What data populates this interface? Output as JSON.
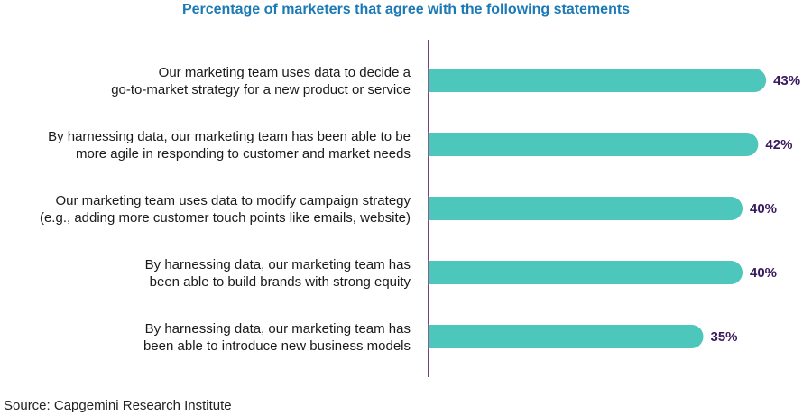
{
  "title": "Percentage of marketers that agree with the following statements",
  "source": "Source: Capgemini Research Institute",
  "colors": {
    "bar": "#4dc6bb",
    "axis": "#5b2a6e",
    "label": "#1a1a1a",
    "value": "#3a1a5e",
    "title": "#1b7ab5"
  },
  "chart_data": {
    "type": "bar",
    "orientation": "horizontal",
    "title": "Percentage of marketers that agree with the following statements",
    "categories": [
      [
        "Our marketing team uses data to decide a",
        "go-to-market strategy for a new product or service"
      ],
      [
        "By harnessing data, our marketing team has been able to be",
        "more agile in responding to customer and market needs"
      ],
      [
        "Our marketing team uses data to modify campaign strategy",
        "(e.g., adding more customer touch points like emails, website)"
      ],
      [
        "By harnessing data, our marketing team has",
        "been able to build brands with strong equity"
      ],
      [
        "By harnessing data, our marketing team has",
        "been able to introduce new business models"
      ]
    ],
    "values": [
      43,
      42,
      40,
      40,
      35
    ],
    "value_labels": [
      "43%",
      "42%",
      "40%",
      "40%",
      "35%"
    ],
    "xlim": [
      0,
      100
    ],
    "grid": false,
    "legend": "none"
  }
}
